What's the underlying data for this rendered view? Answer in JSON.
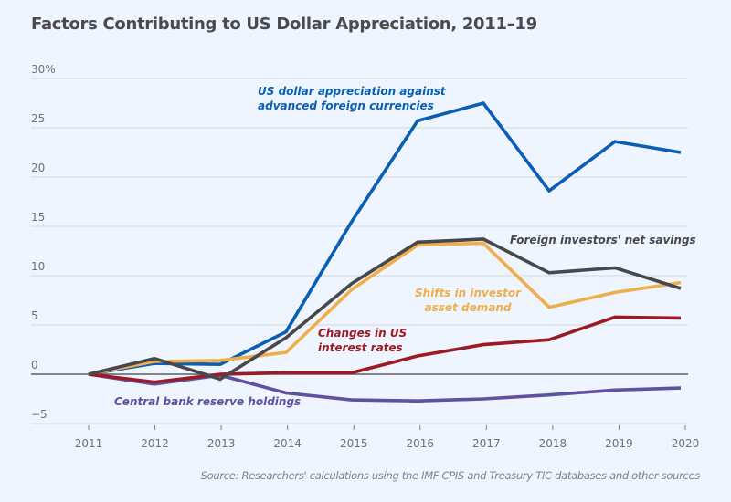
{
  "chart_data": {
    "type": "line",
    "title": "Factors Contributing to US Dollar Appreciation, 2011–19",
    "xlabel": "",
    "ylabel": "",
    "x": [
      2011,
      2012,
      2013,
      2014,
      2015,
      2016,
      2017,
      2018,
      2019,
      2020
    ],
    "xticks": [
      "2011",
      "2012",
      "2013",
      "2014",
      "2015",
      "2016",
      "2017",
      "2018",
      "2019",
      "2020"
    ],
    "yticks": [
      "30%",
      "25",
      "20",
      "15",
      "10",
      "5",
      "0",
      "−5"
    ],
    "ytick_values": [
      30,
      25,
      20,
      15,
      10,
      5,
      0,
      -5
    ],
    "ylim": [
      -5,
      30
    ],
    "grid": true,
    "series": [
      {
        "name": "US dollar appreciation against advanced foreign currencies",
        "color": "#0a5fb4",
        "values": [
          0,
          1.1,
          1.0,
          4.3,
          15.5,
          25.7,
          27.5,
          18.6,
          23.6,
          22.5
        ]
      },
      {
        "name": "Foreign investors' net savings",
        "color": "#48484c",
        "values": [
          0,
          1.6,
          -0.5,
          3.7,
          9.2,
          13.4,
          13.7,
          10.3,
          10.8,
          8.7
        ]
      },
      {
        "name": "Shifts in investor asset demand",
        "color": "#f0ae4a",
        "values": [
          0,
          1.3,
          1.4,
          2.2,
          8.6,
          13.1,
          13.3,
          6.8,
          8.3,
          9.3
        ]
      },
      {
        "name": "Changes in US interest rates",
        "color": "#9a1b25",
        "values": [
          0,
          -0.8,
          0.0,
          0.15,
          0.15,
          1.85,
          3.0,
          3.5,
          5.8,
          5.7
        ]
      },
      {
        "name": "Central bank reserve holdings",
        "color": "#6050a0",
        "values": [
          0,
          -1.0,
          -0.1,
          -1.9,
          -2.6,
          -2.7,
          -2.5,
          -2.1,
          -1.6,
          -1.4
        ]
      }
    ],
    "annotations": [
      {
        "lines": [
          "US dollar appreciation against",
          "advanced foreign currencies"
        ],
        "color": "#0a5fb4"
      },
      {
        "lines": [
          "Foreign investors' net savings"
        ],
        "color": "#48484c"
      },
      {
        "lines": [
          "Shifts in investor",
          "asset demand"
        ],
        "color": "#f0ae4a"
      },
      {
        "lines": [
          "Changes in US",
          "interest rates"
        ],
        "color": "#9a1b25"
      },
      {
        "lines": [
          "Central bank reserve holdings"
        ],
        "color": "#6050a0"
      }
    ],
    "source": "Source: Researchers' calculations using the IMF CPIS and Treasury TIC databases and other sources"
  }
}
